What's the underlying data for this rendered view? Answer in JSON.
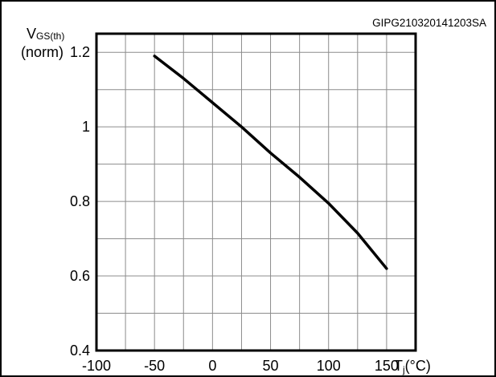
{
  "chart_data": {
    "type": "line",
    "code": "GIPG210320141203SA",
    "ylabel_main": "V",
    "ylabel_sub": "GS(th)",
    "ylabel_unit": "(norm)",
    "xlabel_main": "T",
    "xlabel_sub": "j",
    "xlabel_unit": "(°C)",
    "xlim": [
      -100,
      175
    ],
    "ylim": [
      0.4,
      1.25
    ],
    "xticks": [
      -100,
      -50,
      0,
      50,
      100,
      150
    ],
    "xtick_labels": [
      "-100",
      "-50",
      "0",
      "50",
      "100",
      "150"
    ],
    "yticks": [
      0.4,
      0.6,
      0.8,
      1,
      1.2
    ],
    "ytick_labels": [
      "0.4",
      "0.6",
      "0.8",
      "1",
      "1.2"
    ],
    "grid": true,
    "series": [
      {
        "x": [
          -50,
          -25,
          0,
          25,
          50,
          75,
          100,
          125,
          150
        ],
        "y": [
          1.19,
          1.13,
          1.065,
          1.0,
          0.93,
          0.865,
          0.795,
          0.715,
          0.62
        ]
      }
    ]
  }
}
